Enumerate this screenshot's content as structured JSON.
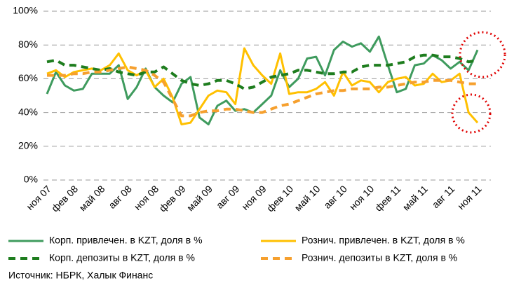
{
  "chart_data": {
    "type": "line",
    "categories": [
      "ноя 07",
      null,
      null,
      "фев 08",
      null,
      null,
      "май 08",
      null,
      null,
      "авг 08",
      null,
      null,
      "ноя 08",
      null,
      null,
      "фев 09",
      null,
      null,
      "май 09",
      null,
      null,
      "авг 09",
      null,
      null,
      "ноя 09",
      null,
      null,
      "фев 10",
      null,
      null,
      "май 10",
      null,
      null,
      "авг 10",
      null,
      null,
      "ноя 10",
      null,
      null,
      "фев 11",
      null,
      null,
      "май 11",
      null,
      null,
      "авг 11",
      null,
      null,
      "ноя 11"
    ],
    "series": [
      {
        "name": "Корп. привлечен. в KZT, доля в %",
        "color": "#3f9b5e",
        "dashed": false,
        "values": [
          51,
          64,
          56,
          53,
          54,
          63,
          63,
          63,
          68,
          48,
          55,
          66,
          55,
          50,
          46,
          57,
          61,
          37,
          33,
          44,
          47,
          41,
          42,
          40,
          45,
          50,
          65,
          55,
          60,
          72,
          73,
          62,
          77,
          82,
          79,
          81,
          76,
          85,
          68,
          52,
          54,
          68,
          69,
          74,
          71,
          66,
          70,
          65,
          77
        ]
      },
      {
        "name": "Рознич. привлечен. в KZT, доля в %",
        "color": "#ffc000",
        "dashed": false,
        "values": [
          63,
          65,
          61,
          64,
          65,
          66,
          65,
          68,
          75,
          65,
          62,
          65,
          55,
          60,
          49,
          33,
          34,
          42,
          50,
          53,
          52,
          45,
          78,
          68,
          62,
          57,
          75,
          51,
          52,
          52,
          54,
          58,
          50,
          64,
          56,
          59,
          58,
          52,
          58,
          60,
          61,
          56,
          57,
          63,
          58,
          59,
          63,
          40,
          34
        ]
      },
      {
        "name": "Корп. депозиты в KZT, доля в %",
        "color": "#1e7d1e",
        "dashed": true,
        "values": [
          70,
          71,
          68,
          68,
          67,
          66,
          65,
          66,
          64,
          63,
          62,
          64,
          64,
          67,
          63,
          59,
          57,
          56,
          57,
          59,
          59,
          57,
          54,
          55,
          58,
          61,
          62,
          63,
          65,
          65,
          64,
          63,
          63,
          64,
          64,
          67,
          68,
          68,
          68,
          69,
          70,
          73,
          74,
          74,
          73,
          73,
          72,
          70,
          71
        ]
      },
      {
        "name": "Рознич. депозиты в KZT, доля в %",
        "color": "#f6a02e",
        "dashed": true,
        "values": [
          62,
          62,
          62,
          63,
          63,
          64,
          64,
          65,
          66,
          67,
          66,
          65,
          62,
          58,
          48,
          38,
          38,
          40,
          41,
          41,
          42,
          42,
          41,
          40,
          40,
          42,
          44,
          45,
          47,
          49,
          51,
          52,
          53,
          53,
          54,
          54,
          54,
          55,
          55,
          56,
          57,
          58,
          58,
          59,
          59,
          59,
          58,
          57,
          57
        ]
      }
    ],
    "ylim": [
      0,
      100
    ],
    "yticks": [
      {
        "value": 0,
        "label": "0%"
      },
      {
        "value": 20,
        "label": "20%"
      },
      {
        "value": 40,
        "label": "40%"
      },
      {
        "value": 60,
        "label": "60%"
      },
      {
        "value": 80,
        "label": "80%"
      },
      {
        "value": 100,
        "label": "100%"
      }
    ],
    "grid": true,
    "source": "Источник: НБРК, Халык Финанс"
  }
}
